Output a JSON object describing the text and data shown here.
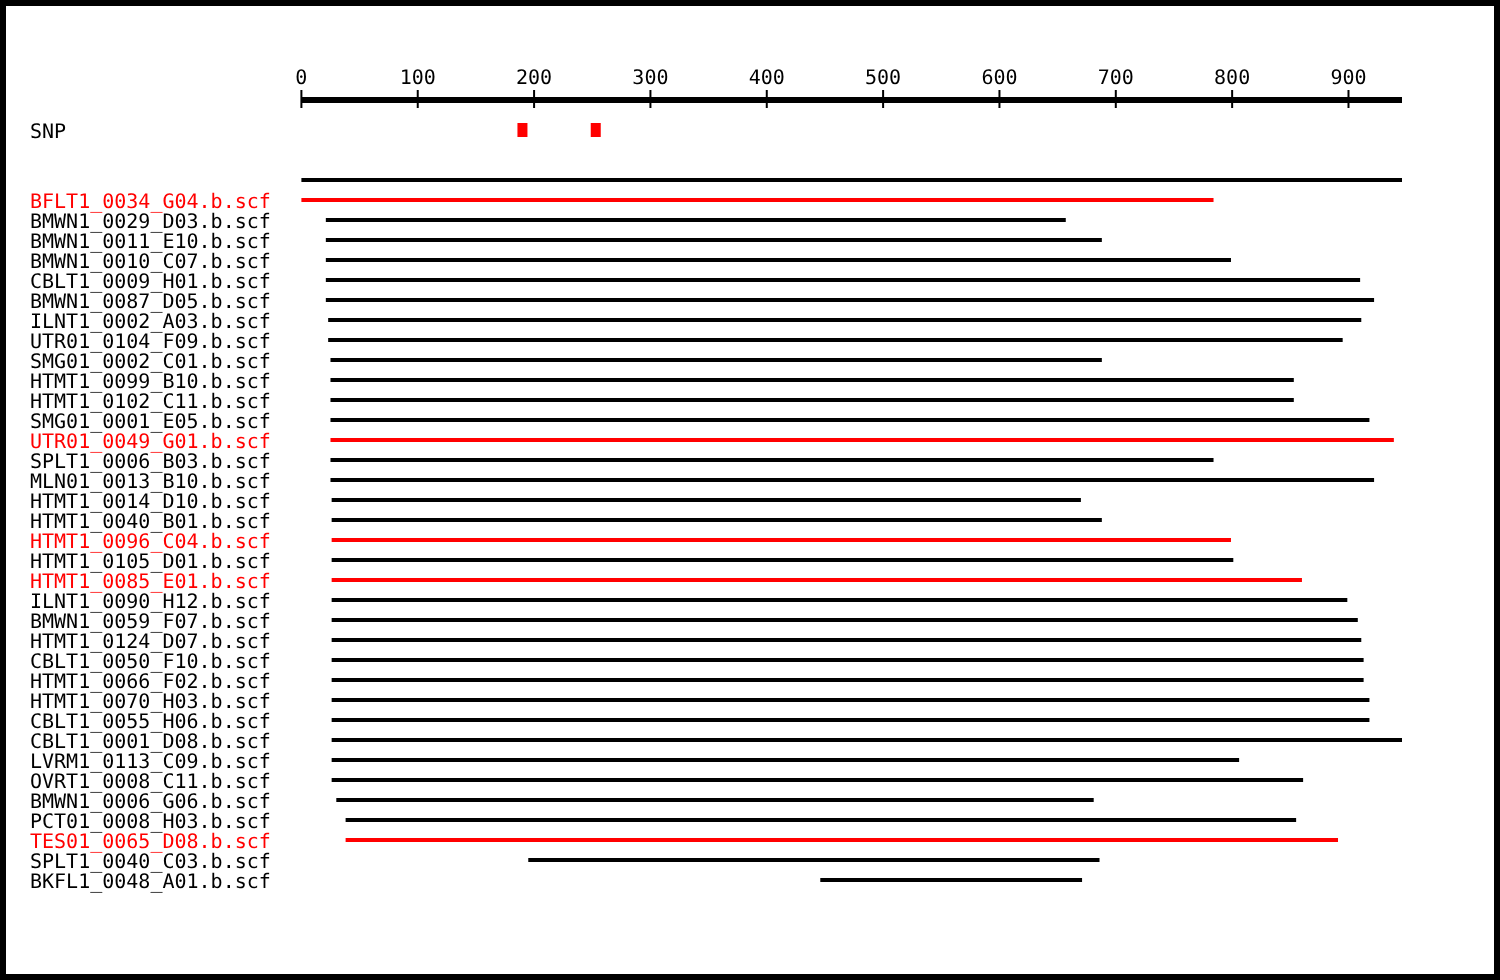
{
  "chart_data": {
    "type": "bar",
    "orientation": "horizontal",
    "xlim": [
      0,
      946
    ],
    "xticks": [
      0,
      100,
      200,
      300,
      400,
      500,
      600,
      700,
      800,
      900
    ],
    "categories": [
      "SNP",
      null,
      "BFLT1_0034_G04.b.scf",
      "BMWN1_0029_D03.b.scf",
      "BMWN1_0011_E10.b.scf",
      "BMWN1_0010_C07.b.scf",
      "CBLT1_0009_H01.b.scf",
      "BMWN1_0087_D05.b.scf",
      "ILNT1_0002_A03.b.scf",
      "UTR01_0104_F09.b.scf",
      "SMG01_0002_C01.b.scf",
      "HTMT1_0099_B10.b.scf",
      "HTMT1_0102_C11.b.scf",
      "SMG01_0001_E05.b.scf",
      "UTR01_0049_G01.b.scf",
      "SPLT1_0006_B03.b.scf",
      "MLN01_0013_B10.b.scf",
      "HTMT1_0014_D10.b.scf",
      "HTMT1_0040_B01.b.scf",
      "HTMT1_0096_C04.b.scf",
      "HTMT1_0105_D01.b.scf",
      "HTMT1_0085_E01.b.scf",
      "ILNT1_0090_H12.b.scf",
      "BMWN1_0059_F07.b.scf",
      "HTMT1_0124_D07.b.scf",
      "CBLT1_0050_F10.b.scf",
      "HTMT1_0066_F02.b.scf",
      "HTMT1_0070_H03.b.scf",
      "CBLT1_0055_H06.b.scf",
      "CBLT1_0001_D08.b.scf",
      "LVRM1_0113_C09.b.scf",
      "OVRT1_0008_C11.b.scf",
      "BMWN1_0006_G06.b.scf",
      "PCT01_0008_H03.b.scf",
      "TES01_0065_D08.b.scf",
      "SPLT1_0040_C03.b.scf",
      "BKFL1_0048_A01.b.scf"
    ],
    "series": [
      {
        "base": [
          null,
          0,
          0,
          21,
          21,
          21,
          21,
          21,
          23,
          23,
          25,
          25,
          25,
          25,
          25,
          25,
          25,
          26,
          26,
          26,
          26,
          26,
          26,
          26,
          26,
          26,
          26,
          26,
          26,
          26,
          26,
          26,
          30,
          38,
          38,
          195,
          446
        ],
        "values": [
          null,
          946,
          784,
          636,
          667,
          778,
          889,
          901,
          888,
          872,
          663,
          828,
          828,
          893,
          914,
          759,
          897,
          644,
          662,
          773,
          775,
          834,
          873,
          882,
          885,
          887,
          887,
          892,
          892,
          920,
          780,
          835,
          651,
          817,
          853,
          491,
          225
        ],
        "colors": [
          "#000000",
          "#000000",
          "#ff0000",
          "#000000",
          "#000000",
          "#000000",
          "#000000",
          "#000000",
          "#000000",
          "#000000",
          "#000000",
          "#000000",
          "#000000",
          "#000000",
          "#ff0000",
          "#000000",
          "#000000",
          "#000000",
          "#000000",
          "#ff0000",
          "#000000",
          "#ff0000",
          "#000000",
          "#000000",
          "#000000",
          "#000000",
          "#000000",
          "#000000",
          "#000000",
          "#000000",
          "#000000",
          "#000000",
          "#000000",
          "#000000",
          "#ff0000",
          "#000000",
          "#000000"
        ]
      },
      {
        "type": "scatter",
        "x": [
          "SNP",
          "SNP"
        ],
        "values": [
          190,
          253
        ],
        "color": "#ff0000",
        "marker": "square"
      }
    ]
  }
}
